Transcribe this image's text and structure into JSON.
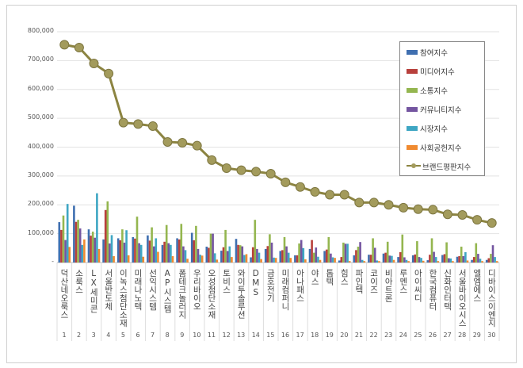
{
  "chart_data": {
    "type": "bar",
    "categories": [
      "덕산네오룩스",
      "소룩스",
      "LX세미콘",
      "서울반도체",
      "이녹스첨단소재",
      "미래나노텍",
      "선익시스템",
      "AP시스템",
      "폼테크놀러지",
      "우리바이오",
      "오성첨단소재",
      "토비스",
      "와이투솔루션",
      "DMS",
      "금호전기",
      "미래컴퍼니",
      "아나패스",
      "야스",
      "톱텍",
      "힘스",
      "파인텍",
      "코이즈",
      "비아트론",
      "루멘스",
      "아이씨디",
      "한국컴퓨터",
      "신화인터텍",
      "서울바이오시스",
      "엘엠에스",
      "디바이스이엔지"
    ],
    "ranks": [
      "1",
      "2",
      "3",
      "4",
      "5",
      "6",
      "7",
      "8",
      "9",
      "10",
      "11",
      "12",
      "13",
      "14",
      "15",
      "16",
      "17",
      "18",
      "19",
      "20",
      "21",
      "22",
      "23",
      "24",
      "25",
      "26",
      "27",
      "28",
      "29",
      "30"
    ],
    "yticks": [
      "-",
      "100,000",
      "200,000",
      "300,000",
      "400,000",
      "500,000",
      "600,000",
      "700,000",
      "800,000"
    ],
    "ylim": [
      0,
      800000
    ],
    "grid": true,
    "legend_position": "top-right",
    "series": [
      {
        "name": "참여지수",
        "type": "bar",
        "color": "#3f6fb0",
        "values": [
          140000,
          197000,
          115000,
          80000,
          84000,
          88000,
          94000,
          61000,
          84000,
          103000,
          55000,
          41000,
          82000,
          18000,
          47000,
          40000,
          25000,
          47000,
          40000,
          7000,
          25000,
          27000,
          31000,
          19000,
          25000,
          8000,
          26000,
          20000,
          9000,
          9000
        ]
      },
      {
        "name": "미디어지수",
        "type": "bar",
        "color": "#b8403c",
        "values": [
          113000,
          141000,
          93000,
          182000,
          77000,
          83000,
          76000,
          72000,
          80000,
          77000,
          51000,
          53000,
          61000,
          53000,
          57000,
          43000,
          25000,
          78000,
          45000,
          19000,
          43000,
          27000,
          34000,
          36000,
          28000,
          27000,
          29000,
          22000,
          19000,
          15000
        ]
      },
      {
        "name": "소통지수",
        "type": "bar",
        "color": "#94b64f",
        "values": [
          163000,
          148000,
          107000,
          212000,
          115000,
          159000,
          122000,
          130000,
          134000,
          127000,
          100000,
          113000,
          60000,
          148000,
          98000,
          88000,
          66000,
          34000,
          88000,
          69000,
          55000,
          84000,
          72000,
          97000,
          74000,
          84000,
          70000,
          55000,
          67000,
          30000
        ]
      },
      {
        "name": "커뮤니티지수",
        "type": "bar",
        "color": "#7455a0",
        "values": [
          78000,
          118000,
          86000,
          66000,
          69000,
          67000,
          56000,
          67000,
          56000,
          47000,
          100000,
          40000,
          56000,
          47000,
          69000,
          56000,
          78000,
          52000,
          31000,
          65000,
          71000,
          51000,
          24000,
          18000,
          19000,
          37000,
          15000,
          22000,
          30000,
          60000
        ]
      },
      {
        "name": "시장지수",
        "type": "bar",
        "color": "#3ea6c3",
        "values": [
          203000,
          61000,
          240000,
          95000,
          112000,
          61000,
          84000,
          61000,
          43000,
          27000,
          32000,
          56000,
          26000,
          34000,
          17000,
          34000,
          50000,
          20000,
          18000,
          65000,
          9000,
          7000,
          23000,
          9000,
          16000,
          19000,
          14000,
          36000,
          13000,
          19000
        ]
      },
      {
        "name": "사회공헌지수",
        "type": "bar",
        "color": "#f08a30",
        "values": [
          54000,
          80000,
          47000,
          22000,
          25000,
          20000,
          37000,
          22000,
          13000,
          24000,
          10000,
          19000,
          29000,
          12000,
          16000,
          16000,
          11000,
          9000,
          16000,
          5000,
          5000,
          5000,
          9000,
          5000,
          6000,
          5000,
          5000,
          7000,
          5000,
          5000
        ]
      },
      {
        "name": "브랜드평판지수",
        "type": "line",
        "color": "#8c8441",
        "values": [
          755000,
          745000,
          690000,
          655000,
          485000,
          480000,
          473000,
          418000,
          415000,
          405000,
          355000,
          327000,
          320000,
          315000,
          308000,
          278000,
          262000,
          245000,
          235000,
          235000,
          208000,
          208000,
          200000,
          190000,
          185000,
          183000,
          167000,
          165000,
          148000,
          137000
        ]
      }
    ]
  }
}
